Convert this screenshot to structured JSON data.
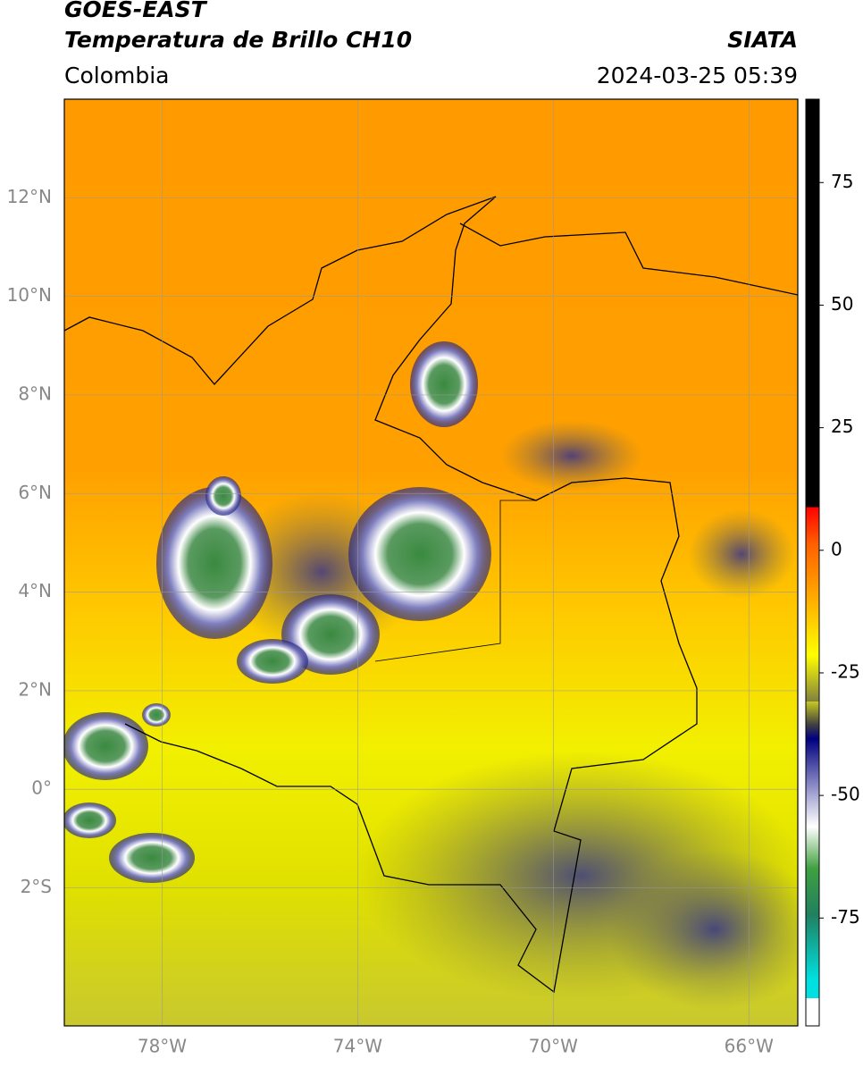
{
  "header": {
    "title": "GOES-EAST",
    "subtitle": "Temperatura de Brillo CH10",
    "region": "Colombia",
    "source": "SIATA",
    "timestamp": "2024-03-25 05:39"
  },
  "map": {
    "lonlim": [
      -80,
      -65
    ],
    "latlim": [
      -4.8,
      14
    ],
    "xticks": [
      {
        "value": -78,
        "label": "78°W"
      },
      {
        "value": -74,
        "label": "74°W"
      },
      {
        "value": -70,
        "label": "70°W"
      },
      {
        "value": -66,
        "label": "66°W"
      }
    ],
    "yticks": [
      {
        "value": 12,
        "label": "12°N"
      },
      {
        "value": 10,
        "label": "10°N"
      },
      {
        "value": 8,
        "label": "8°N"
      },
      {
        "value": 6,
        "label": "6°N"
      },
      {
        "value": 4,
        "label": "4°N"
      },
      {
        "value": 2,
        "label": "2°N"
      },
      {
        "value": 0,
        "label": "0°"
      },
      {
        "value": -2,
        "label": "2°S"
      }
    ],
    "grid": true
  },
  "colorbar": {
    "lim": [
      -97,
      92
    ],
    "ticks": [
      75,
      50,
      25,
      0,
      -25,
      -50,
      -75
    ]
  }
}
